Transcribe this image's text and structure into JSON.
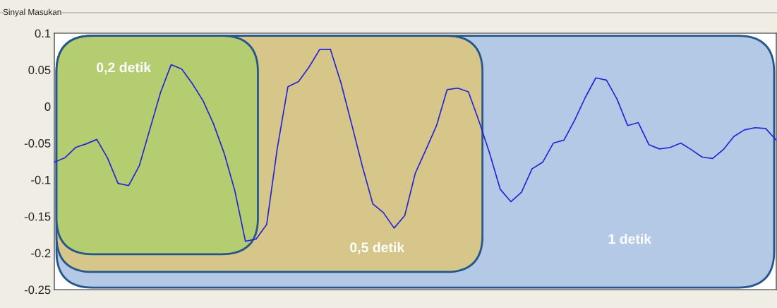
{
  "chart_data": {
    "type": "line",
    "title": "Sinyal Masukan",
    "categories": [
      null,
      null,
      null,
      null,
      null,
      null,
      null,
      null,
      null,
      null,
      null,
      null,
      null,
      null,
      null,
      null,
      null,
      null,
      null,
      null,
      null,
      null,
      null,
      null,
      null,
      null,
      null,
      null,
      null,
      null,
      null,
      null,
      null,
      null,
      null,
      null,
      null,
      null,
      null,
      null,
      null,
      null,
      null,
      null,
      null,
      null,
      null,
      null,
      null,
      null,
      null,
      null,
      null,
      null,
      null,
      null,
      null,
      null,
      null,
      null,
      null,
      null,
      null,
      null,
      null,
      null,
      null,
      null,
      null
    ],
    "series": [
      {
        "color": "#2323d8",
        "values": [
          -0.076,
          -0.07,
          -0.056,
          -0.051,
          -0.045,
          -0.07,
          -0.105,
          -0.108,
          -0.081,
          -0.031,
          0.019,
          0.057,
          0.051,
          0.031,
          0.008,
          -0.024,
          -0.064,
          -0.115,
          -0.184,
          -0.181,
          -0.161,
          -0.057,
          0.027,
          0.034,
          0.054,
          0.078,
          0.078,
          0.032,
          -0.024,
          -0.081,
          -0.133,
          -0.145,
          -0.166,
          -0.149,
          -0.091,
          -0.059,
          -0.026,
          0.023,
          0.025,
          0.02,
          -0.02,
          -0.064,
          -0.113,
          -0.13,
          -0.117,
          -0.085,
          -0.076,
          -0.05,
          -0.046,
          -0.019,
          0.012,
          0.039,
          0.036,
          0.01,
          -0.026,
          -0.022,
          -0.052,
          -0.058,
          -0.056,
          -0.05,
          -0.059,
          -0.069,
          -0.071,
          -0.059,
          -0.041,
          -0.032,
          -0.029,
          -0.03,
          -0.046
        ]
      }
    ],
    "ylim": [
      -0.25,
      0.1
    ],
    "yticks": [
      0.1,
      0.05,
      0,
      -0.05,
      -0.1,
      -0.15,
      -0.2,
      -0.25
    ],
    "tick_labels": "y",
    "grid": false,
    "marker": "none",
    "line_style": "solid",
    "annotations": [
      "0,2 detik",
      "0,5 detik",
      "1 detik"
    ]
  }
}
